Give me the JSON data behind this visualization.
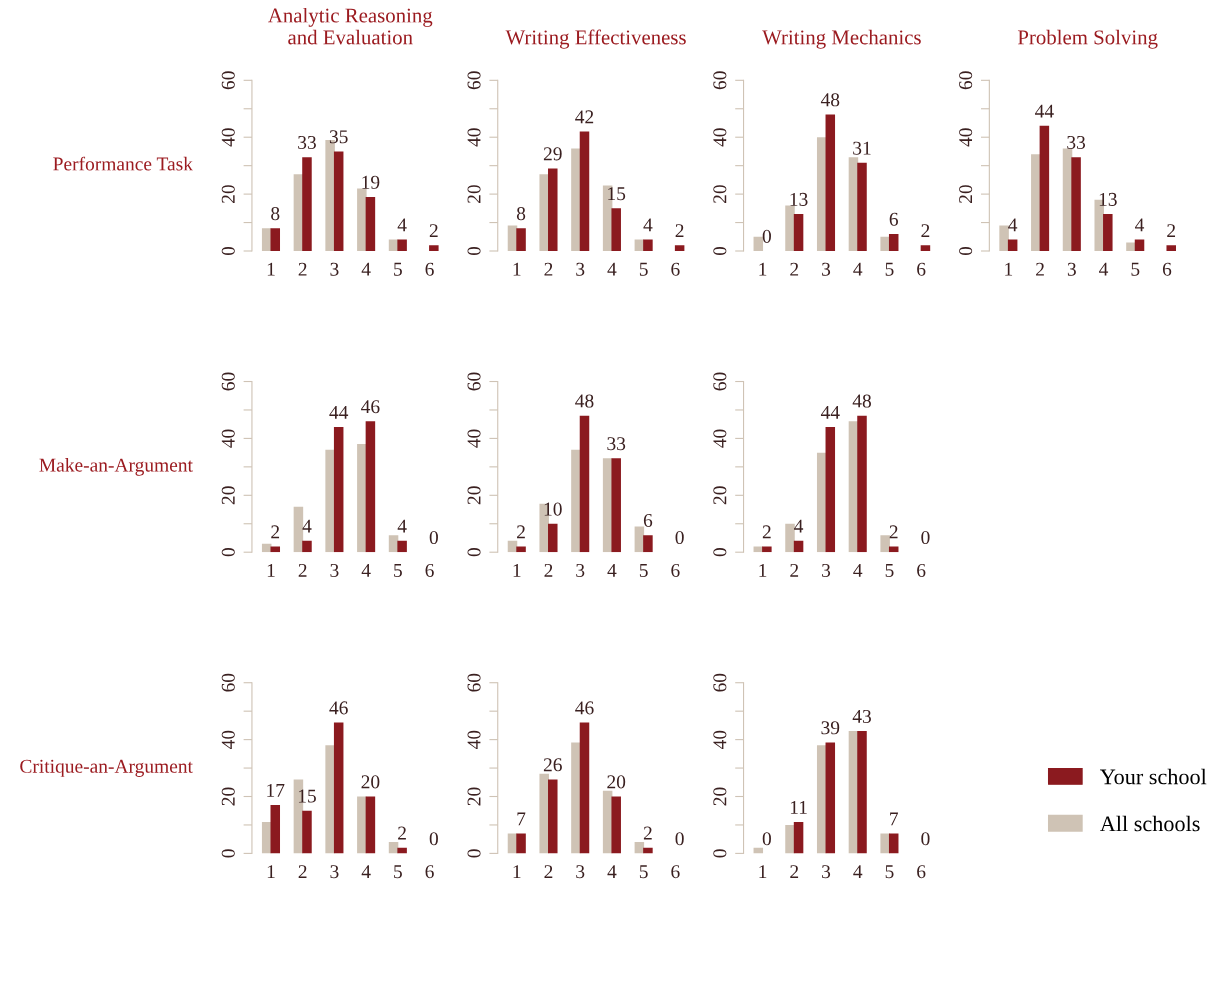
{
  "chart_data": [
    {
      "type": "bar",
      "title": "Analytic Reasoning\nand Evaluation",
      "ylabel": "Performance Task",
      "categories": [
        "1",
        "2",
        "3",
        "4",
        "5",
        "6"
      ],
      "series": [
        {
          "color": "#cfc3b5",
          "values": [
            8,
            27,
            39,
            22,
            4,
            0
          ]
        },
        {
          "color": "#8b1a1f",
          "values": [
            8,
            33,
            35,
            19,
            4,
            2
          ],
          "value_labels": [
            "8",
            "33",
            "35",
            "19",
            "4",
            "2"
          ]
        }
      ],
      "ylim": [
        0,
        60
      ],
      "yticks": [
        0,
        {
          "value": 10,
          "label": null
        },
        20,
        {
          "value": 30,
          "label": null
        },
        40,
        {
          "value": 50,
          "label": null
        },
        60
      ],
      "legend": false,
      "grid": false
    },
    {
      "type": "bar",
      "title": "Writing Effectiveness",
      "categories": [
        "1",
        "2",
        "3",
        "4",
        "5",
        "6"
      ],
      "series": [
        {
          "color": "#cfc3b5",
          "values": [
            9,
            27,
            36,
            23,
            4,
            0
          ]
        },
        {
          "color": "#8b1a1f",
          "values": [
            8,
            29,
            42,
            15,
            4,
            2
          ],
          "value_labels": [
            "8",
            "29",
            "42",
            "15",
            "4",
            "2"
          ]
        }
      ],
      "ylim": [
        0,
        60
      ],
      "yticks": [
        0,
        {
          "value": 10,
          "label": null
        },
        20,
        {
          "value": 30,
          "label": null
        },
        40,
        {
          "value": 50,
          "label": null
        },
        60
      ],
      "legend": false,
      "grid": false
    },
    {
      "type": "bar",
      "title": "Writing Mechanics",
      "categories": [
        "1",
        "2",
        "3",
        "4",
        "5",
        "6"
      ],
      "series": [
        {
          "color": "#cfc3b5",
          "values": [
            5,
            16,
            40,
            33,
            5,
            0
          ]
        },
        {
          "color": "#8b1a1f",
          "values": [
            0,
            13,
            48,
            31,
            6,
            2
          ],
          "value_labels": [
            "0",
            "13",
            "48",
            "31",
            "6",
            "2"
          ]
        }
      ],
      "ylim": [
        0,
        60
      ],
      "yticks": [
        0,
        {
          "value": 10,
          "label": null
        },
        20,
        {
          "value": 30,
          "label": null
        },
        40,
        {
          "value": 50,
          "label": null
        },
        60
      ],
      "legend": false,
      "grid": false
    },
    {
      "type": "bar",
      "title": "Problem Solving",
      "categories": [
        "1",
        "2",
        "3",
        "4",
        "5",
        "6"
      ],
      "series": [
        {
          "color": "#cfc3b5",
          "values": [
            9,
            34,
            36,
            18,
            3,
            0
          ]
        },
        {
          "color": "#8b1a1f",
          "values": [
            4,
            44,
            33,
            13,
            4,
            2
          ],
          "value_labels": [
            "4",
            "44",
            "33",
            "13",
            "4",
            "2"
          ]
        }
      ],
      "ylim": [
        0,
        60
      ],
      "yticks": [
        0,
        {
          "value": 10,
          "label": null
        },
        20,
        {
          "value": 30,
          "label": null
        },
        40,
        {
          "value": 50,
          "label": null
        },
        60
      ],
      "legend": false,
      "grid": false
    },
    {
      "type": "bar",
      "ylabel": "Make-an-Argument",
      "categories": [
        "1",
        "2",
        "3",
        "4",
        "5",
        "6"
      ],
      "series": [
        {
          "color": "#cfc3b5",
          "values": [
            3,
            16,
            36,
            38,
            6,
            0
          ]
        },
        {
          "color": "#8b1a1f",
          "values": [
            2,
            4,
            44,
            46,
            4,
            0
          ],
          "value_labels": [
            "2",
            "4",
            "44",
            "46",
            "4",
            "0"
          ]
        }
      ],
      "ylim": [
        0,
        60
      ],
      "yticks": [
        0,
        {
          "value": 10,
          "label": null
        },
        20,
        {
          "value": 30,
          "label": null
        },
        40,
        {
          "value": 50,
          "label": null
        },
        60
      ],
      "legend": false,
      "grid": false
    },
    {
      "type": "bar",
      "categories": [
        "1",
        "2",
        "3",
        "4",
        "5",
        "6"
      ],
      "series": [
        {
          "color": "#cfc3b5",
          "values": [
            4,
            17,
            36,
            33,
            9,
            0
          ]
        },
        {
          "color": "#8b1a1f",
          "values": [
            2,
            10,
            48,
            33,
            6,
            0
          ],
          "value_labels": [
            "2",
            "10",
            "48",
            "33",
            "6",
            "0"
          ]
        }
      ],
      "ylim": [
        0,
        60
      ],
      "yticks": [
        0,
        {
          "value": 10,
          "label": null
        },
        20,
        {
          "value": 30,
          "label": null
        },
        40,
        {
          "value": 50,
          "label": null
        },
        60
      ],
      "legend": false,
      "grid": false
    },
    {
      "type": "bar",
      "categories": [
        "1",
        "2",
        "3",
        "4",
        "5",
        "6"
      ],
      "series": [
        {
          "color": "#cfc3b5",
          "values": [
            2,
            10,
            35,
            46,
            6,
            0
          ]
        },
        {
          "color": "#8b1a1f",
          "values": [
            2,
            4,
            44,
            48,
            2,
            0
          ],
          "value_labels": [
            "2",
            "4",
            "44",
            "48",
            "2",
            "0"
          ]
        }
      ],
      "ylim": [
        0,
        60
      ],
      "yticks": [
        0,
        {
          "value": 10,
          "label": null
        },
        20,
        {
          "value": 30,
          "label": null
        },
        40,
        {
          "value": 50,
          "label": null
        },
        60
      ],
      "legend": false,
      "grid": false
    },
    {
      "type": "bar",
      "ylabel": "Critique-an-Argument",
      "categories": [
        "1",
        "2",
        "3",
        "4",
        "5",
        "6"
      ],
      "series": [
        {
          "color": "#cfc3b5",
          "values": [
            11,
            26,
            38,
            20,
            4,
            0
          ]
        },
        {
          "color": "#8b1a1f",
          "values": [
            17,
            15,
            46,
            20,
            2,
            0
          ],
          "value_labels": [
            "17",
            "15",
            "46",
            "20",
            "2",
            "0"
          ]
        }
      ],
      "ylim": [
        0,
        60
      ],
      "yticks": [
        0,
        {
          "value": 10,
          "label": null
        },
        20,
        {
          "value": 30,
          "label": null
        },
        40,
        {
          "value": 50,
          "label": null
        },
        60
      ],
      "legend": false,
      "grid": false
    },
    {
      "type": "bar",
      "categories": [
        "1",
        "2",
        "3",
        "4",
        "5",
        "6"
      ],
      "series": [
        {
          "color": "#cfc3b5",
          "values": [
            7,
            28,
            39,
            22,
            4,
            0
          ]
        },
        {
          "color": "#8b1a1f",
          "values": [
            7,
            26,
            46,
            20,
            2,
            0
          ],
          "value_labels": [
            "7",
            "26",
            "46",
            "20",
            "2",
            "0"
          ]
        }
      ],
      "ylim": [
        0,
        60
      ],
      "yticks": [
        0,
        {
          "value": 10,
          "label": null
        },
        20,
        {
          "value": 30,
          "label": null
        },
        40,
        {
          "value": 50,
          "label": null
        },
        60
      ],
      "legend": false,
      "grid": false
    },
    {
      "type": "bar",
      "categories": [
        "1",
        "2",
        "3",
        "4",
        "5",
        "6"
      ],
      "series": [
        {
          "name": "All schools",
          "color": "#cfc3b5",
          "values": [
            2,
            10,
            38,
            43,
            7,
            0
          ]
        },
        {
          "name": "Your school",
          "color": "#8b1a1f",
          "values": [
            0,
            11,
            39,
            43,
            7,
            0
          ],
          "value_labels": [
            "0",
            "11",
            "39",
            "43",
            "7",
            "0"
          ]
        }
      ],
      "ylim": [
        0,
        60
      ],
      "yticks": [
        0,
        {
          "value": 10,
          "label": null
        },
        20,
        {
          "value": 30,
          "label": null
        },
        40,
        {
          "value": 50,
          "label": null
        },
        60
      ],
      "legend": "right",
      "grid": false
    }
  ]
}
